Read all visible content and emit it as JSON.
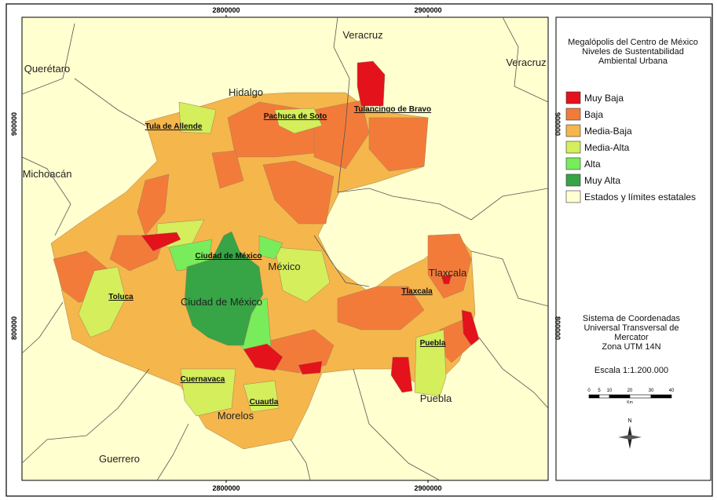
{
  "map": {
    "x_ticks_top": [
      "2800000",
      "2900000"
    ],
    "x_ticks_bottom": [
      "2800000",
      "2900000"
    ],
    "y_ticks_left": [
      "900000",
      "800000"
    ],
    "y_ticks_right": [
      "900000",
      "800000"
    ],
    "region_labels": [
      "Querétaro",
      "Hidalgo",
      "Veracruz",
      "Veracruz",
      "Michoacán",
      "México",
      "Ciudad de México",
      "Tlaxcala",
      "Puebla",
      "Morelos",
      "Guerrero"
    ],
    "city_labels": [
      "Tula de Allende",
      "Pachuca de Soto",
      "Tulancingo de Bravo",
      "Ciudad de México",
      "Toluca",
      "Tlaxcala",
      "Puebla",
      "Cuernavaca",
      "Cuautla"
    ]
  },
  "legend": {
    "title": [
      "Megalópolis del Centro de México",
      "Niveles de Sustentabilidad",
      "Ambiental Urbana"
    ],
    "items": [
      {
        "label": "Muy Baja",
        "color": "#e3121b"
      },
      {
        "label": "Baja",
        "color": "#f37b3a"
      },
      {
        "label": "Media-Baja",
        "color": "#f5b64b"
      },
      {
        "label": "Media-Alta",
        "color": "#d4ee5c"
      },
      {
        "label": "Alta",
        "color": "#78ec5a"
      },
      {
        "label": "Muy Alta",
        "color": "#37a445"
      },
      {
        "label": "Estados y límites estatales",
        "color": "#ffffcf"
      }
    ]
  },
  "coordinates": [
    "Sistema de Coordenadas",
    "Universal Transversal de",
    "Mercator",
    "Zona UTM 14N"
  ],
  "scale": "Escala 1:1.200.000",
  "scale_bar": {
    "ticks": [
      "0",
      "5",
      "10",
      "20",
      "30",
      "40"
    ],
    "unit": "Km"
  },
  "north": "N"
}
